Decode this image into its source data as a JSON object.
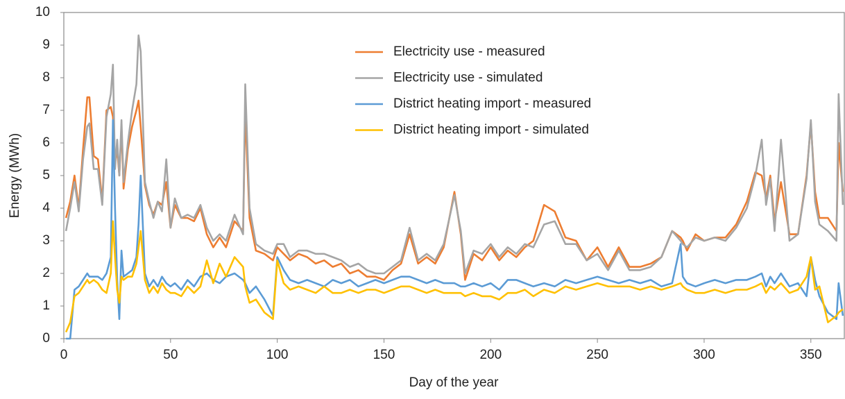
{
  "chart_data": {
    "type": "line",
    "xlabel": "Day of the year",
    "ylabel": "Energy (MWh)",
    "xlim": [
      0,
      366
    ],
    "xticks": [
      0,
      50,
      100,
      150,
      200,
      250,
      300,
      350
    ],
    "ylim": [
      0,
      10
    ],
    "yticks": [
      0,
      1,
      2,
      3,
      4,
      5,
      6,
      7,
      8,
      9,
      10
    ],
    "grid": false,
    "legend": "top",
    "x": [
      1,
      3,
      5,
      7,
      9,
      11,
      12,
      14,
      16,
      18,
      20,
      22,
      23,
      24,
      25,
      26,
      27,
      28,
      30,
      32,
      34,
      35,
      36,
      38,
      40,
      42,
      44,
      46,
      48,
      50,
      52,
      55,
      58,
      61,
      64,
      67,
      70,
      73,
      76,
      80,
      84,
      85,
      87,
      90,
      94,
      98,
      100,
      103,
      106,
      110,
      114,
      118,
      122,
      126,
      130,
      134,
      138,
      142,
      146,
      150,
      154,
      158,
      162,
      166,
      170,
      174,
      178,
      183,
      186,
      188,
      192,
      196,
      200,
      204,
      208,
      212,
      216,
      220,
      225,
      230,
      235,
      240,
      245,
      250,
      255,
      260,
      265,
      270,
      275,
      280,
      285,
      289,
      290,
      292,
      296,
      300,
      305,
      310,
      315,
      320,
      324,
      327,
      329,
      331,
      333,
      336,
      340,
      344,
      348,
      350,
      352,
      354,
      358,
      362,
      363,
      365
    ],
    "series": [
      {
        "name": "Electricity use - measured",
        "color": "#ED7D31",
        "values": [
          3.7,
          4.2,
          5.0,
          4.0,
          5.8,
          7.4,
          7.4,
          5.6,
          5.5,
          4.2,
          7.0,
          7.1,
          6.8,
          5.4,
          5.8,
          5.0,
          6.5,
          4.6,
          5.8,
          6.5,
          7.0,
          7.3,
          6.5,
          4.7,
          4.1,
          3.8,
          4.2,
          4.1,
          4.8,
          3.4,
          4.1,
          3.7,
          3.7,
          3.6,
          4.0,
          3.2,
          2.8,
          3.1,
          2.8,
          3.6,
          3.3,
          7.0,
          3.7,
          2.7,
          2.6,
          2.4,
          2.8,
          2.6,
          2.4,
          2.6,
          2.5,
          2.3,
          2.4,
          2.2,
          2.3,
          2.0,
          2.1,
          1.9,
          1.9,
          1.8,
          2.1,
          2.3,
          3.2,
          2.3,
          2.5,
          2.3,
          2.8,
          4.5,
          3.2,
          1.8,
          2.6,
          2.4,
          2.8,
          2.4,
          2.7,
          2.5,
          2.8,
          3.0,
          4.1,
          3.9,
          3.1,
          3.0,
          2.4,
          2.8,
          2.2,
          2.8,
          2.2,
          2.2,
          2.3,
          2.5,
          3.3,
          3.1,
          3.0,
          2.7,
          3.2,
          3.0,
          3.1,
          3.1,
          3.5,
          4.2,
          5.1,
          5.0,
          4.3,
          5.0,
          3.6,
          4.8,
          3.2,
          3.2,
          5.0,
          6.6,
          4.5,
          3.7,
          3.7,
          3.3,
          6.0,
          4.5
        ]
      },
      {
        "name": "Electricity use - simulated",
        "color": "#A5A5A5",
        "values": [
          3.3,
          4.0,
          4.8,
          3.9,
          5.5,
          6.5,
          6.6,
          5.2,
          5.2,
          4.1,
          6.8,
          7.5,
          8.4,
          5.2,
          6.1,
          5.0,
          6.7,
          4.8,
          6.0,
          7.0,
          7.8,
          9.3,
          8.8,
          4.8,
          4.2,
          3.7,
          4.2,
          3.9,
          5.5,
          3.4,
          4.3,
          3.7,
          3.8,
          3.7,
          4.1,
          3.4,
          3.0,
          3.2,
          3.0,
          3.8,
          3.2,
          7.8,
          4.0,
          2.9,
          2.7,
          2.6,
          2.9,
          2.9,
          2.5,
          2.7,
          2.7,
          2.6,
          2.6,
          2.5,
          2.4,
          2.2,
          2.3,
          2.1,
          2.0,
          2.0,
          2.2,
          2.4,
          3.4,
          2.4,
          2.6,
          2.4,
          2.9,
          4.4,
          3.3,
          2.0,
          2.7,
          2.6,
          2.9,
          2.5,
          2.8,
          2.6,
          2.9,
          2.8,
          3.5,
          3.6,
          2.9,
          2.9,
          2.4,
          2.6,
          2.1,
          2.7,
          2.1,
          2.1,
          2.2,
          2.5,
          3.3,
          3.0,
          2.9,
          2.8,
          3.1,
          3.0,
          3.1,
          3.0,
          3.4,
          4.0,
          5.0,
          6.1,
          4.1,
          4.9,
          3.3,
          6.1,
          3.0,
          3.2,
          4.9,
          6.7,
          4.2,
          3.5,
          3.3,
          3.0,
          7.5,
          4.1
        ]
      },
      {
        "name": "District heating import - measured",
        "color": "#5B9BD5",
        "values": [
          0,
          0,
          1.5,
          1.6,
          1.8,
          2.0,
          1.9,
          1.9,
          1.9,
          1.8,
          2.0,
          2.5,
          6.7,
          4.0,
          1.8,
          0.6,
          2.7,
          1.9,
          2.0,
          2.1,
          2.5,
          3.5,
          5.0,
          2.0,
          1.6,
          1.8,
          1.6,
          1.9,
          1.7,
          1.6,
          1.7,
          1.5,
          1.8,
          1.6,
          1.9,
          2.0,
          1.8,
          1.7,
          1.9,
          2.0,
          1.8,
          1.7,
          1.4,
          1.6,
          1.2,
          0.7,
          2.5,
          2.1,
          1.8,
          1.7,
          1.8,
          1.7,
          1.6,
          1.8,
          1.7,
          1.8,
          1.6,
          1.7,
          1.8,
          1.7,
          1.8,
          1.9,
          1.9,
          1.8,
          1.7,
          1.8,
          1.7,
          1.7,
          1.6,
          1.6,
          1.7,
          1.6,
          1.7,
          1.5,
          1.8,
          1.8,
          1.7,
          1.6,
          1.7,
          1.6,
          1.8,
          1.7,
          1.8,
          1.9,
          1.8,
          1.7,
          1.8,
          1.7,
          1.8,
          1.6,
          1.7,
          2.9,
          1.9,
          1.7,
          1.6,
          1.7,
          1.8,
          1.7,
          1.8,
          1.8,
          1.9,
          2.0,
          1.6,
          1.9,
          1.7,
          2.0,
          1.6,
          1.7,
          1.3,
          2.5,
          1.8,
          1.3,
          0.8,
          0.6,
          1.7,
          0.7
        ]
      },
      {
        "name": "District heating import - simulated",
        "color": "#FFC000",
        "values": [
          0.2,
          0.5,
          1.3,
          1.4,
          1.6,
          1.8,
          1.7,
          1.8,
          1.7,
          1.5,
          1.4,
          2.0,
          3.6,
          2.5,
          1.5,
          1.1,
          1.9,
          1.8,
          1.9,
          1.9,
          2.3,
          2.8,
          3.3,
          1.8,
          1.4,
          1.6,
          1.4,
          1.7,
          1.5,
          1.4,
          1.4,
          1.3,
          1.6,
          1.4,
          1.6,
          2.4,
          1.7,
          2.3,
          1.9,
          2.5,
          2.2,
          1.6,
          1.1,
          1.2,
          0.8,
          0.6,
          2.4,
          1.7,
          1.5,
          1.6,
          1.5,
          1.4,
          1.6,
          1.4,
          1.4,
          1.5,
          1.4,
          1.5,
          1.5,
          1.4,
          1.5,
          1.6,
          1.6,
          1.5,
          1.4,
          1.5,
          1.4,
          1.4,
          1.4,
          1.3,
          1.4,
          1.3,
          1.3,
          1.2,
          1.4,
          1.4,
          1.5,
          1.3,
          1.5,
          1.4,
          1.6,
          1.5,
          1.6,
          1.7,
          1.6,
          1.6,
          1.6,
          1.5,
          1.6,
          1.5,
          1.6,
          1.7,
          1.6,
          1.5,
          1.4,
          1.4,
          1.5,
          1.4,
          1.5,
          1.5,
          1.6,
          1.7,
          1.4,
          1.6,
          1.5,
          1.7,
          1.4,
          1.5,
          1.9,
          2.5,
          1.5,
          1.6,
          0.5,
          0.7,
          0.8,
          0.9
        ]
      }
    ]
  }
}
